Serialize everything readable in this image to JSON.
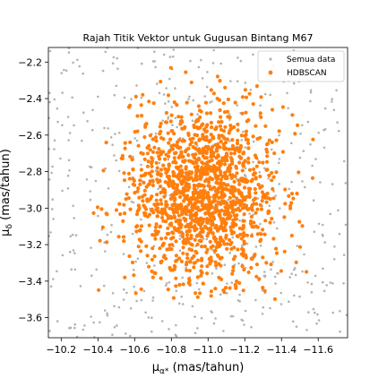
{
  "chart_data": {
    "type": "scatter",
    "title": "Rajah Titik Vektor untuk Gugusan Bintang M67",
    "xlabel_main": "μ",
    "xlabel_sub": "α*",
    "xlabel_unit": " (mas/tahun)",
    "ylabel_main": "μ",
    "ylabel_sub": "δ",
    "ylabel_unit": " (mas/tahun)",
    "xlim": [
      -10.13,
      -11.76
    ],
    "ylim": [
      -2.12,
      -3.71
    ],
    "x_inverted": true,
    "y_inverted": true,
    "xticks": [
      -10.2,
      -10.4,
      -10.6,
      -10.8,
      -11.0,
      -11.2,
      -11.4,
      -11.6
    ],
    "xtick_labels": [
      "−10.2",
      "−10.4",
      "−10.6",
      "−10.8",
      "−11.0",
      "−11.2",
      "−11.4",
      "−11.6"
    ],
    "yticks": [
      -2.2,
      -2.4,
      -2.6,
      -2.8,
      -3.0,
      -3.2,
      -3.4,
      -3.6
    ],
    "ytick_labels": [
      "−2.2",
      "−2.4",
      "−2.6",
      "−2.8",
      "−3.0",
      "−3.2",
      "−3.4",
      "−3.6"
    ],
    "legend_position": "top-right",
    "grid": false,
    "series": [
      {
        "name": "Semua data",
        "color": "#b3b3b3",
        "marker": "small-dot",
        "distribution": "uniform",
        "count": 520,
        "x_range": [
          -10.13,
          -11.76
        ],
        "y_range": [
          -2.12,
          -3.71
        ]
      },
      {
        "name": "HDBSCAN",
        "color": "#ff7f0e",
        "marker": "dot",
        "distribution": "gaussian-cluster",
        "count": 1500,
        "center": [
          -10.97,
          -2.93
        ],
        "x_spread": 0.2,
        "y_spread": 0.24,
        "x_range": [
          -10.27,
          -11.6
        ],
        "y_range": [
          -2.22,
          -3.5
        ]
      }
    ]
  }
}
